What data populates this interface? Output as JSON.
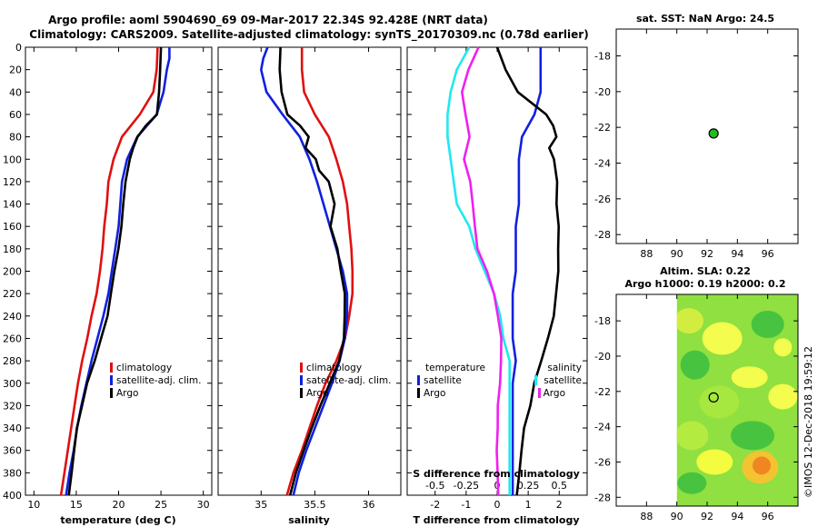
{
  "title": {
    "line1": "Argo profile: aoml 5904690_69 09-Mar-2017 22.34S 92.428E (NRT data)",
    "line2": "Climatology: CARS2009. Satellite-adjusted climatology: synTS_20170309.nc (0.78d earlier)"
  },
  "colors": {
    "climatology": "#e01010",
    "satellite": "#1020e0",
    "argo": "#000000",
    "satellite_salinity": "#20e8f0",
    "argo_salinity": "#f020f0"
  },
  "depth_ticks": [
    "0",
    "20",
    "40",
    "60",
    "80",
    "100",
    "120",
    "140",
    "160",
    "180",
    "200",
    "220",
    "240",
    "260",
    "280",
    "300",
    "320",
    "340",
    "360",
    "380",
    "400"
  ],
  "chart_data": [
    {
      "type": "line",
      "name": "temperature-profile",
      "xlabel": "temperature (deg C)",
      "ylabel": "depth",
      "xlim": [
        9,
        31
      ],
      "ylim": [
        400,
        0
      ],
      "xticks": [
        "10",
        "15",
        "20",
        "25",
        "30"
      ],
      "legend": [
        "climatology",
        "satellite-adj. clim.",
        "Argo"
      ],
      "series": [
        {
          "name": "climatology",
          "color": "#e01010",
          "depth": [
            0,
            20,
            40,
            60,
            80,
            100,
            120,
            140,
            160,
            180,
            200,
            220,
            240,
            260,
            280,
            300,
            320,
            340,
            360,
            380,
            400
          ],
          "values": [
            24.6,
            24.5,
            24.1,
            22.5,
            20.4,
            19.4,
            18.8,
            18.6,
            18.3,
            18.1,
            17.8,
            17.4,
            16.8,
            16.3,
            15.7,
            15.2,
            14.8,
            14.4,
            14.0,
            13.6,
            13.2
          ]
        },
        {
          "name": "satellite-adj. clim.",
          "color": "#1020e0",
          "depth": [
            0,
            10,
            20,
            40,
            60,
            80,
            100,
            120,
            140,
            160,
            180,
            200,
            220,
            240,
            260,
            280,
            300,
            320,
            340,
            360,
            380,
            400
          ],
          "values": [
            26.0,
            26.0,
            25.7,
            25.3,
            24.5,
            22.2,
            21.0,
            20.4,
            20.2,
            20.0,
            19.6,
            19.2,
            18.8,
            18.2,
            17.5,
            16.8,
            16.2,
            15.6,
            15.1,
            14.7,
            14.2,
            13.8
          ]
        },
        {
          "name": "Argo",
          "color": "#000000",
          "depth": [
            0,
            20,
            40,
            60,
            70,
            80,
            90,
            100,
            120,
            140,
            160,
            180,
            200,
            220,
            240,
            260,
            280,
            300,
            320,
            340,
            360,
            380,
            400
          ],
          "values": [
            25.0,
            25.0,
            24.9,
            24.6,
            23.2,
            22.2,
            21.8,
            21.2,
            20.7,
            20.5,
            20.4,
            20.1,
            19.6,
            19.1,
            18.6,
            17.8,
            17.1,
            16.3,
            15.8,
            15.2,
            14.8,
            14.4,
            14.0
          ]
        }
      ]
    },
    {
      "type": "line",
      "name": "salinity-profile",
      "xlabel": "salinity",
      "ylabel": "depth",
      "xlim": [
        34.6,
        36.3
      ],
      "ylim": [
        400,
        0
      ],
      "xticks": [
        "35",
        "35.5",
        "36"
      ],
      "legend": [
        "climatology",
        "satellite-adj. clim.",
        "Argo"
      ],
      "series": [
        {
          "name": "climatology",
          "color": "#e01010",
          "depth": [
            0,
            20,
            40,
            60,
            80,
            100,
            120,
            140,
            160,
            180,
            200,
            220,
            240,
            260,
            280,
            300,
            320,
            340,
            360,
            380,
            400
          ],
          "values": [
            35.38,
            35.38,
            35.4,
            35.5,
            35.63,
            35.7,
            35.76,
            35.8,
            35.82,
            35.84,
            35.85,
            35.85,
            35.82,
            35.78,
            35.7,
            35.6,
            35.52,
            35.45,
            35.38,
            35.3,
            35.24
          ]
        },
        {
          "name": "satellite-adj. clim.",
          "color": "#1020e0",
          "depth": [
            0,
            10,
            20,
            40,
            60,
            80,
            100,
            120,
            140,
            160,
            180,
            200,
            220,
            240,
            260,
            280,
            300,
            320,
            340,
            360,
            380,
            400
          ],
          "values": [
            35.06,
            35.02,
            35.0,
            35.05,
            35.2,
            35.36,
            35.45,
            35.52,
            35.58,
            35.64,
            35.7,
            35.76,
            35.8,
            35.8,
            35.78,
            35.73,
            35.66,
            35.58,
            35.5,
            35.42,
            35.35,
            35.3
          ]
        },
        {
          "name": "Argo",
          "color": "#000000",
          "depth": [
            0,
            20,
            40,
            60,
            70,
            80,
            90,
            100,
            110,
            120,
            140,
            160,
            180,
            200,
            220,
            240,
            260,
            280,
            300,
            320,
            340,
            360,
            380,
            400
          ],
          "values": [
            35.18,
            35.18,
            35.2,
            35.25,
            35.36,
            35.44,
            35.42,
            35.5,
            35.55,
            35.62,
            35.68,
            35.65,
            35.72,
            35.75,
            35.78,
            35.77,
            35.76,
            35.72,
            35.64,
            35.56,
            35.48,
            35.4,
            35.32,
            35.26
          ]
        }
      ]
    },
    {
      "type": "line",
      "name": "difference-profile",
      "xlabel": "T difference from climatology",
      "top_label": "S difference from climatology",
      "ylabel": "depth",
      "xlim": [
        -2.9,
        2.9
      ],
      "ylim": [
        400,
        0
      ],
      "xticks_bottom": [
        "-2",
        "-1",
        "0",
        "1",
        "2"
      ],
      "xticks_top": [
        "-0.5",
        "-0.25",
        "0",
        "0.25",
        "0.5"
      ],
      "legend": {
        "temperature": "temperature",
        "salinity": "salinity",
        "satellite": "satellite",
        "argo": "Argo"
      },
      "series": [
        {
          "name": "T satellite",
          "color": "#1020e0",
          "depth": [
            0,
            20,
            40,
            60,
            80,
            100,
            120,
            140,
            160,
            180,
            200,
            220,
            240,
            260,
            280,
            300,
            320,
            340,
            360,
            380,
            400
          ],
          "values": [
            1.4,
            1.4,
            1.4,
            1.2,
            0.8,
            0.7,
            0.7,
            0.7,
            0.6,
            0.6,
            0.6,
            0.5,
            0.5,
            0.5,
            0.6,
            0.5,
            0.5,
            0.5,
            0.5,
            0.5,
            0.5
          ]
        },
        {
          "name": "T Argo",
          "color": "#000000",
          "depth": [
            0,
            20,
            40,
            60,
            70,
            80,
            90,
            100,
            120,
            140,
            160,
            180,
            200,
            220,
            240,
            260,
            280,
            300,
            320,
            340,
            360,
            380,
            400
          ],
          "values": [
            0.0,
            0.3,
            0.7,
            1.6,
            1.8,
            1.9,
            1.7,
            1.8,
            1.9,
            1.9,
            2.0,
            2.0,
            2.0,
            1.9,
            1.8,
            1.6,
            1.4,
            1.2,
            1.1,
            0.9,
            0.8,
            0.7,
            0.6
          ]
        },
        {
          "name": "S satellite",
          "color": "#20e8f0",
          "depth": [
            0,
            20,
            40,
            60,
            80,
            100,
            120,
            140,
            160,
            180,
            200,
            220,
            240,
            260,
            280,
            300,
            320,
            340,
            360,
            380,
            400
          ],
          "values": [
            -0.9,
            -1.3,
            -1.5,
            -1.6,
            -1.6,
            -1.5,
            -1.4,
            -1.3,
            -0.9,
            -0.7,
            -0.4,
            -0.1,
            0.1,
            0.2,
            0.4,
            0.4,
            0.4,
            0.4,
            0.4,
            0.4,
            0.4
          ]
        },
        {
          "name": "S Argo",
          "color": "#f020f0",
          "depth": [
            0,
            20,
            40,
            60,
            80,
            100,
            120,
            140,
            160,
            180,
            200,
            220,
            240,
            260,
            280,
            300,
            320,
            340,
            360,
            380,
            400
          ],
          "values": [
            -0.6,
            -0.9,
            -1.1,
            -1.0,
            -0.9,
            -1.1,
            -0.9,
            -0.8,
            -0.7,
            -0.6,
            -0.3,
            -0.1,
            0.0,
            0.1,
            0.1,
            0.1,
            0.05,
            0.05,
            0.0,
            0.0,
            0.0
          ]
        }
      ]
    },
    {
      "type": "scatter",
      "name": "sst-map",
      "title": "sat. SST: NaN Argo: 24.5",
      "xlim": [
        86,
        98
      ],
      "ylim": [
        -28.5,
        -16.5
      ],
      "xticks": [
        "88",
        "90",
        "92",
        "94",
        "96"
      ],
      "yticks": [
        "-18",
        "-20",
        "-22",
        "-24",
        "-26",
        "-28"
      ],
      "points": [
        {
          "lon": 92.43,
          "lat": -22.34,
          "color": "#22bb22"
        }
      ]
    },
    {
      "type": "heatmap",
      "name": "sla-map",
      "title_line1": "Altim. SLA: 0.22",
      "title_line2": "Argo h1000: 0.19 h2000: 0.2",
      "xlim": [
        86,
        98
      ],
      "ylim": [
        -28.5,
        -16.5
      ],
      "xticks": [
        "88",
        "90",
        "92",
        "94",
        "96"
      ],
      "yticks": [
        "-18",
        "-20",
        "-22",
        "-24",
        "-26",
        "-28"
      ],
      "data_lon_range": [
        90,
        98
      ],
      "points": [
        {
          "lon": 92.43,
          "lat": -22.34,
          "color": "none"
        }
      ]
    }
  ],
  "credit": "©IMOS 12-Dec-2018 19:59:12"
}
